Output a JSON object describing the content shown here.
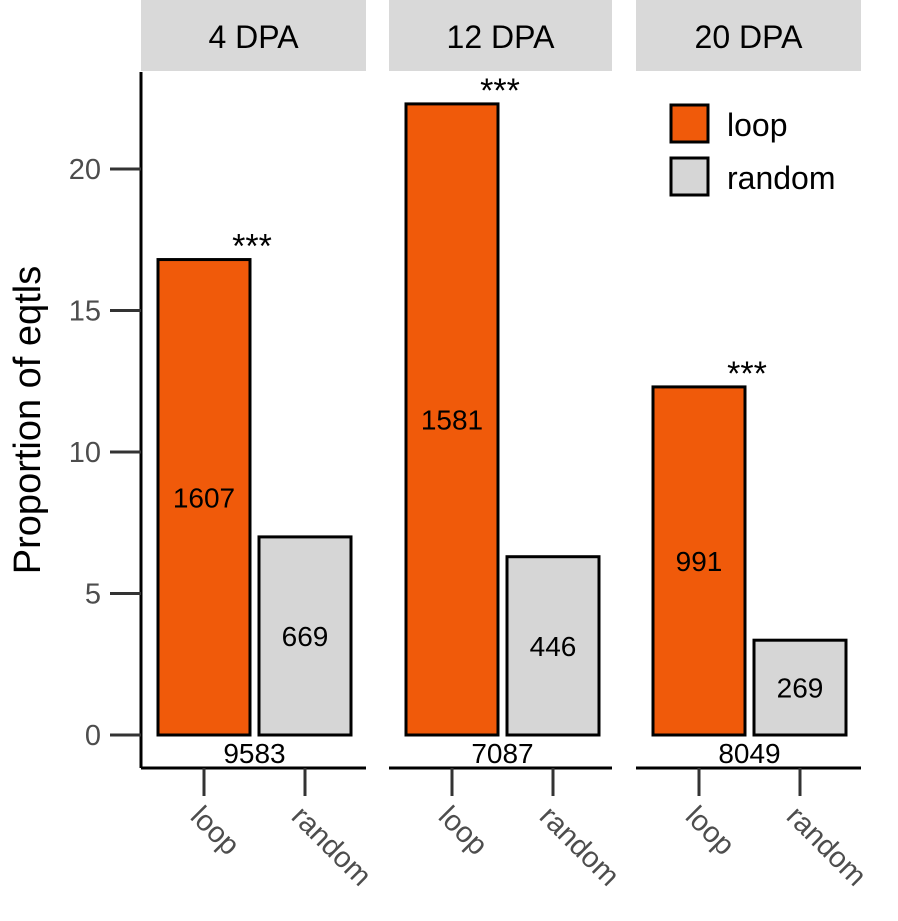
{
  "chart_data": {
    "type": "bar",
    "ylabel": "Proportion of eqtls",
    "xlabel": "",
    "ylim": [
      0,
      23
    ],
    "yticks": [
      0,
      5,
      10,
      15,
      20
    ],
    "categories": [
      "loop",
      "random"
    ],
    "legend": {
      "placement": "top-right",
      "entries": [
        {
          "label": "loop",
          "color": "#F05A0A"
        },
        {
          "label": "random",
          "color": "#D6D6D6"
        }
      ]
    },
    "panels": [
      {
        "title": "4 DPA",
        "values": [
          16.8,
          7.0
        ],
        "bar_counts": [
          "1607",
          "669"
        ],
        "total_label": "9583",
        "significance": "***"
      },
      {
        "title": "12 DPA",
        "values": [
          22.3,
          6.3
        ],
        "bar_counts": [
          "1581",
          "446"
        ],
        "total_label": "7087",
        "significance": "***"
      },
      {
        "title": "20 DPA",
        "values": [
          12.3,
          3.35
        ],
        "bar_counts": [
          "991",
          "269"
        ],
        "total_label": "8049",
        "significance": "***"
      }
    ]
  }
}
